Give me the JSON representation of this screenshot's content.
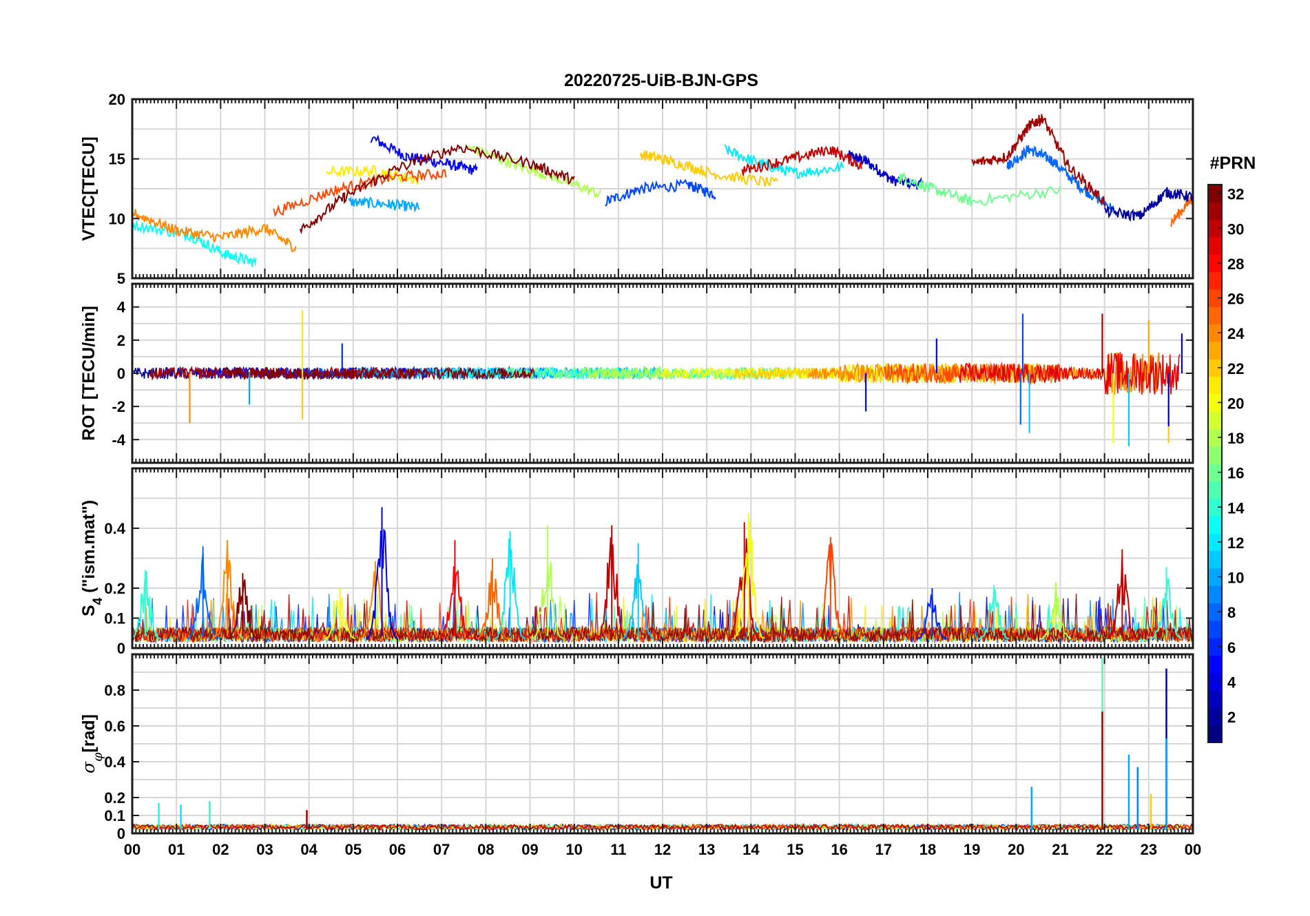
{
  "chart_data": {
    "type": "line",
    "title": "20220725-UiB-BJN-GPS",
    "xlabel": "UT",
    "x_tick_labels": [
      "00",
      "01",
      "02",
      "03",
      "04",
      "05",
      "06",
      "07",
      "08",
      "09",
      "10",
      "11",
      "12",
      "13",
      "14",
      "15",
      "16",
      "17",
      "18",
      "19",
      "20",
      "21",
      "22",
      "23",
      "00"
    ],
    "xlim_hours": [
      0,
      24
    ],
    "grid": true,
    "colorbar": {
      "label": "#PRN",
      "range": [
        1,
        32
      ],
      "tick_labels": [
        "2",
        "4",
        "6",
        "8",
        "10",
        "12",
        "14",
        "16",
        "18",
        "20",
        "22",
        "24",
        "26",
        "28",
        "30",
        "32"
      ],
      "tick_values": [
        2,
        4,
        6,
        8,
        10,
        12,
        14,
        16,
        18,
        20,
        22,
        24,
        26,
        28,
        30,
        32
      ],
      "colormap": "jet",
      "position": "right"
    },
    "panels": [
      {
        "id": "vtec",
        "ylabel": "VTEC[TECU]",
        "ylim": [
          5,
          20
        ],
        "y_ticks": [
          5,
          10,
          15,
          20
        ],
        "y_tick_labels": [
          "5",
          "10",
          "15",
          "20"
        ],
        "y_minor": [
          7.5,
          12.5,
          17.5
        ],
        "series": [
          {
            "prn": 3,
            "x": [
              16.2,
              16.6,
              17.2,
              17.9
            ],
            "y": [
              15.3,
              14.8,
              13.2,
              12.8
            ]
          },
          {
            "prn": 5,
            "x": [
              5.4,
              6.2,
              7.1,
              7.8
            ],
            "y": [
              16.8,
              15.2,
              14.6,
              14.0
            ]
          },
          {
            "prn": 7,
            "x": [
              10.7,
              11.5,
              12.6,
              13.2
            ],
            "y": [
              11.4,
              12.5,
              12.8,
              12.0
            ]
          },
          {
            "prn": 8,
            "x": [
              19.8,
              20.3,
              20.8,
              21.5,
              22.2
            ],
            "y": [
              14.4,
              15.8,
              14.9,
              12.5,
              10.8
            ]
          },
          {
            "prn": 10,
            "x": [
              4.9,
              5.8,
              6.5
            ],
            "y": [
              11.4,
              11.2,
              10.9
            ]
          },
          {
            "prn": 12,
            "x": [
              13.4,
              14.2,
              15.0,
              16.1
            ],
            "y": [
              15.8,
              14.6,
              13.8,
              14.3
            ]
          },
          {
            "prn": 13,
            "x": [
              0.0,
              1.3,
              2.1,
              2.8
            ],
            "y": [
              9.5,
              8.6,
              7.0,
              6.3
            ]
          },
          {
            "prn": 16,
            "x": [
              17.3,
              18.1,
              19.0,
              21.0
            ],
            "y": [
              13.6,
              12.5,
              11.4,
              12.4
            ]
          },
          {
            "prn": 18,
            "x": [
              7.6,
              8.6,
              9.6,
              10.6
            ],
            "y": [
              16.0,
              14.6,
              13.4,
              12.0
            ]
          },
          {
            "prn": 21,
            "x": [
              4.4,
              5.5,
              6.5
            ],
            "y": [
              13.9,
              14.0,
              13.2
            ]
          },
          {
            "prn": 22,
            "x": [
              11.5,
              12.2,
              13.2,
              14.6
            ],
            "y": [
              15.4,
              14.8,
              13.7,
              12.9
            ]
          },
          {
            "prn": 24,
            "x": [
              0.0,
              1.0,
              2.0,
              3.0,
              3.7
            ],
            "y": [
              10.5,
              9.0,
              8.4,
              9.2,
              7.5
            ]
          },
          {
            "prn": 25,
            "x": [
              23.5,
              24.0
            ],
            "y": [
              9.6,
              11.8
            ]
          },
          {
            "prn": 26,
            "x": [
              3.2,
              4.6,
              5.8,
              7.1
            ],
            "y": [
              10.5,
              12.4,
              13.4,
              13.8
            ]
          },
          {
            "prn": 30,
            "x": [
              13.8,
              14.8,
              15.8,
              16.5
            ],
            "y": [
              14.0,
              14.9,
              15.8,
              14.4
            ]
          },
          {
            "prn": 32,
            "x": [
              3.8,
              4.8,
              6.0,
              7.4,
              9.0,
              10.0
            ],
            "y": [
              9.0,
              11.8,
              14.2,
              16.0,
              14.6,
              13.2
            ]
          },
          {
            "prn": 31,
            "x": [
              19.0,
              19.8,
              20.3,
              20.6,
              21.2,
              22.0
            ],
            "y": [
              14.6,
              15.2,
              17.8,
              18.4,
              14.3,
              11.4
            ]
          },
          {
            "prn": 2,
            "x": [
              22.0,
              22.8,
              23.4,
              24.0
            ],
            "y": [
              10.6,
              10.2,
              12.2,
              11.8
            ]
          }
        ]
      },
      {
        "id": "rot",
        "ylabel": "ROT [TECU/min]",
        "ylim": [
          -5.4,
          5.4
        ],
        "y_ticks": [
          -4,
          -2,
          0,
          2,
          4
        ],
        "y_tick_labels": [
          "-4",
          "-2",
          "0",
          "2",
          "4"
        ],
        "y_minor": [
          -3,
          -1,
          1,
          3
        ],
        "spikes": [
          {
            "prn": 24,
            "x": 1.3,
            "y": -3.0
          },
          {
            "prn": 21,
            "x": 3.85,
            "y": 3.8
          },
          {
            "prn": 22,
            "x": 3.85,
            "y": -2.8
          },
          {
            "prn": 10,
            "x": 2.65,
            "y": -1.9
          },
          {
            "prn": 6,
            "x": 4.75,
            "y": 1.8
          },
          {
            "prn": 4,
            "x": 16.6,
            "y": -2.3
          },
          {
            "prn": 5,
            "x": 18.2,
            "y": 2.1
          },
          {
            "prn": 8,
            "x": 20.1,
            "y": -3.1
          },
          {
            "prn": 7,
            "x": 20.15,
            "y": 3.6
          },
          {
            "prn": 11,
            "x": 20.3,
            "y": -3.6
          },
          {
            "prn": 31,
            "x": 21.95,
            "y": 3.6
          },
          {
            "prn": 20,
            "x": 22.2,
            "y": -4.2
          },
          {
            "prn": 11,
            "x": 22.55,
            "y": -4.4
          },
          {
            "prn": 23,
            "x": 23.0,
            "y": 3.2
          },
          {
            "prn": 22,
            "x": 23.45,
            "y": -4.2
          },
          {
            "prn": 3,
            "x": 23.45,
            "y": -3.2
          },
          {
            "prn": 4,
            "x": 23.75,
            "y": 2.4
          }
        ]
      },
      {
        "id": "s4",
        "ylabel": "S4 (\"ism.mat\")",
        "ylim": [
          0,
          0.6
        ],
        "y_ticks": [
          0,
          0.1,
          0.2,
          0.4
        ],
        "y_tick_labels": [
          "0",
          "0.1",
          "0.2",
          "0.4"
        ],
        "y_minor": [
          0.3,
          0.5
        ],
        "peaks": [
          {
            "prn": 14,
            "x": 0.3,
            "y": 0.26
          },
          {
            "prn": 8,
            "x": 1.6,
            "y": 0.34
          },
          {
            "prn": 24,
            "x": 2.15,
            "y": 0.36
          },
          {
            "prn": 32,
            "x": 2.5,
            "y": 0.25
          },
          {
            "prn": 20,
            "x": 4.7,
            "y": 0.2
          },
          {
            "prn": 24,
            "x": 5.5,
            "y": 0.29
          },
          {
            "prn": 4,
            "x": 5.65,
            "y": 0.47
          },
          {
            "prn": 28,
            "x": 7.3,
            "y": 0.36
          },
          {
            "prn": 25,
            "x": 8.15,
            "y": 0.3
          },
          {
            "prn": 12,
            "x": 8.55,
            "y": 0.39
          },
          {
            "prn": 18,
            "x": 9.4,
            "y": 0.41
          },
          {
            "prn": 30,
            "x": 10.85,
            "y": 0.41
          },
          {
            "prn": 11,
            "x": 11.45,
            "y": 0.35
          },
          {
            "prn": 30,
            "x": 13.85,
            "y": 0.42
          },
          {
            "prn": 20,
            "x": 13.95,
            "y": 0.45
          },
          {
            "prn": 26,
            "x": 15.8,
            "y": 0.37
          },
          {
            "prn": 6,
            "x": 18.1,
            "y": 0.2
          },
          {
            "prn": 14,
            "x": 19.5,
            "y": 0.21
          },
          {
            "prn": 18,
            "x": 20.9,
            "y": 0.22
          },
          {
            "prn": 30,
            "x": 22.4,
            "y": 0.33
          },
          {
            "prn": 14,
            "x": 23.4,
            "y": 0.27
          }
        ]
      },
      {
        "id": "sigma_phi",
        "ylabel": "σφ[rad]",
        "ylim": [
          0,
          1.0
        ],
        "y_ticks": [
          0,
          0.1,
          0.2,
          0.4,
          0.6,
          0.8
        ],
        "y_tick_labels": [
          "0",
          "0.1",
          "0.2",
          "0.4",
          "0.6",
          "0.8"
        ],
        "y_minor": [
          0.3,
          0.5,
          0.7,
          0.9
        ],
        "peaks": [
          {
            "prn": 13,
            "x": 0.6,
            "y": 0.17
          },
          {
            "prn": 12,
            "x": 1.1,
            "y": 0.16
          },
          {
            "prn": 14,
            "x": 1.75,
            "y": 0.18
          },
          {
            "prn": 31,
            "x": 3.95,
            "y": 0.13
          },
          {
            "prn": 10,
            "x": 20.35,
            "y": 0.26
          },
          {
            "prn": 15,
            "x": 21.95,
            "y": 0.98
          },
          {
            "prn": 31,
            "x": 21.95,
            "y": 0.68
          },
          {
            "prn": 10,
            "x": 22.55,
            "y": 0.44
          },
          {
            "prn": 9,
            "x": 22.75,
            "y": 0.37
          },
          {
            "prn": 22,
            "x": 23.05,
            "y": 0.22
          },
          {
            "prn": 2,
            "x": 23.4,
            "y": 0.92
          },
          {
            "prn": 10,
            "x": 23.4,
            "y": 0.53
          }
        ]
      }
    ]
  }
}
